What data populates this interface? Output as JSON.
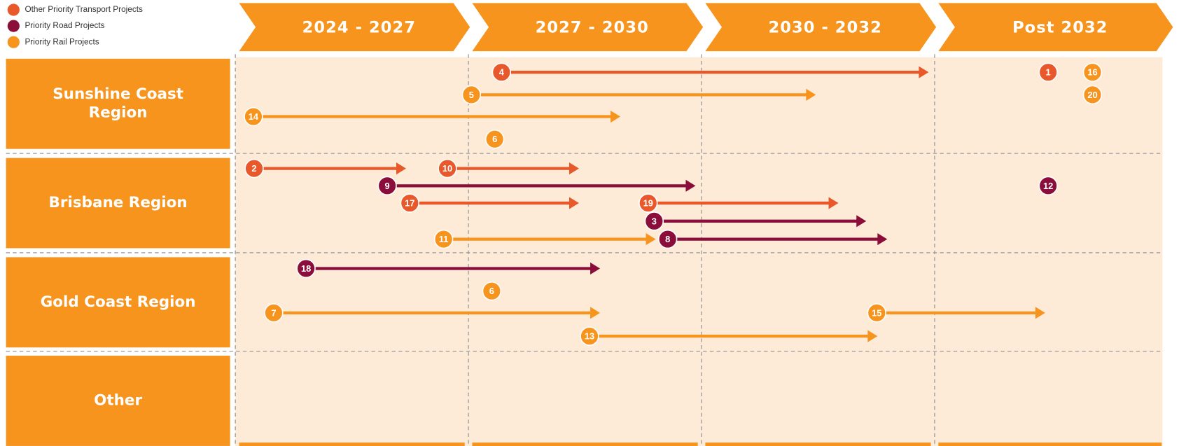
{
  "legend": [
    {
      "label": "Other Priority Transport Projects",
      "color": "#e8582a",
      "projects": [
        "4",
        "1",
        "2",
        "10",
        "17",
        "19"
      ]
    },
    {
      "label": "Priority Road Projects",
      "color": "#8b0d3a",
      "projects": [
        "9",
        "12",
        "3",
        "8",
        "18"
      ]
    },
    {
      "label": "Priority Rail Projects",
      "color": "#f7941d",
      "projects": [
        "5",
        "14",
        "6",
        "16",
        "20",
        "11",
        "6",
        "7",
        "15",
        "13"
      ]
    }
  ],
  "periods": [
    "2024 - 2027",
    "2027 - 2030",
    "2030 - 2032",
    "Post 2032"
  ],
  "regions": [
    [
      "Sunshine Coast",
      "Region"
    ],
    [
      "Brisbane Region"
    ],
    [
      "Gold Coast Region"
    ],
    [
      "Other"
    ]
  ]
}
